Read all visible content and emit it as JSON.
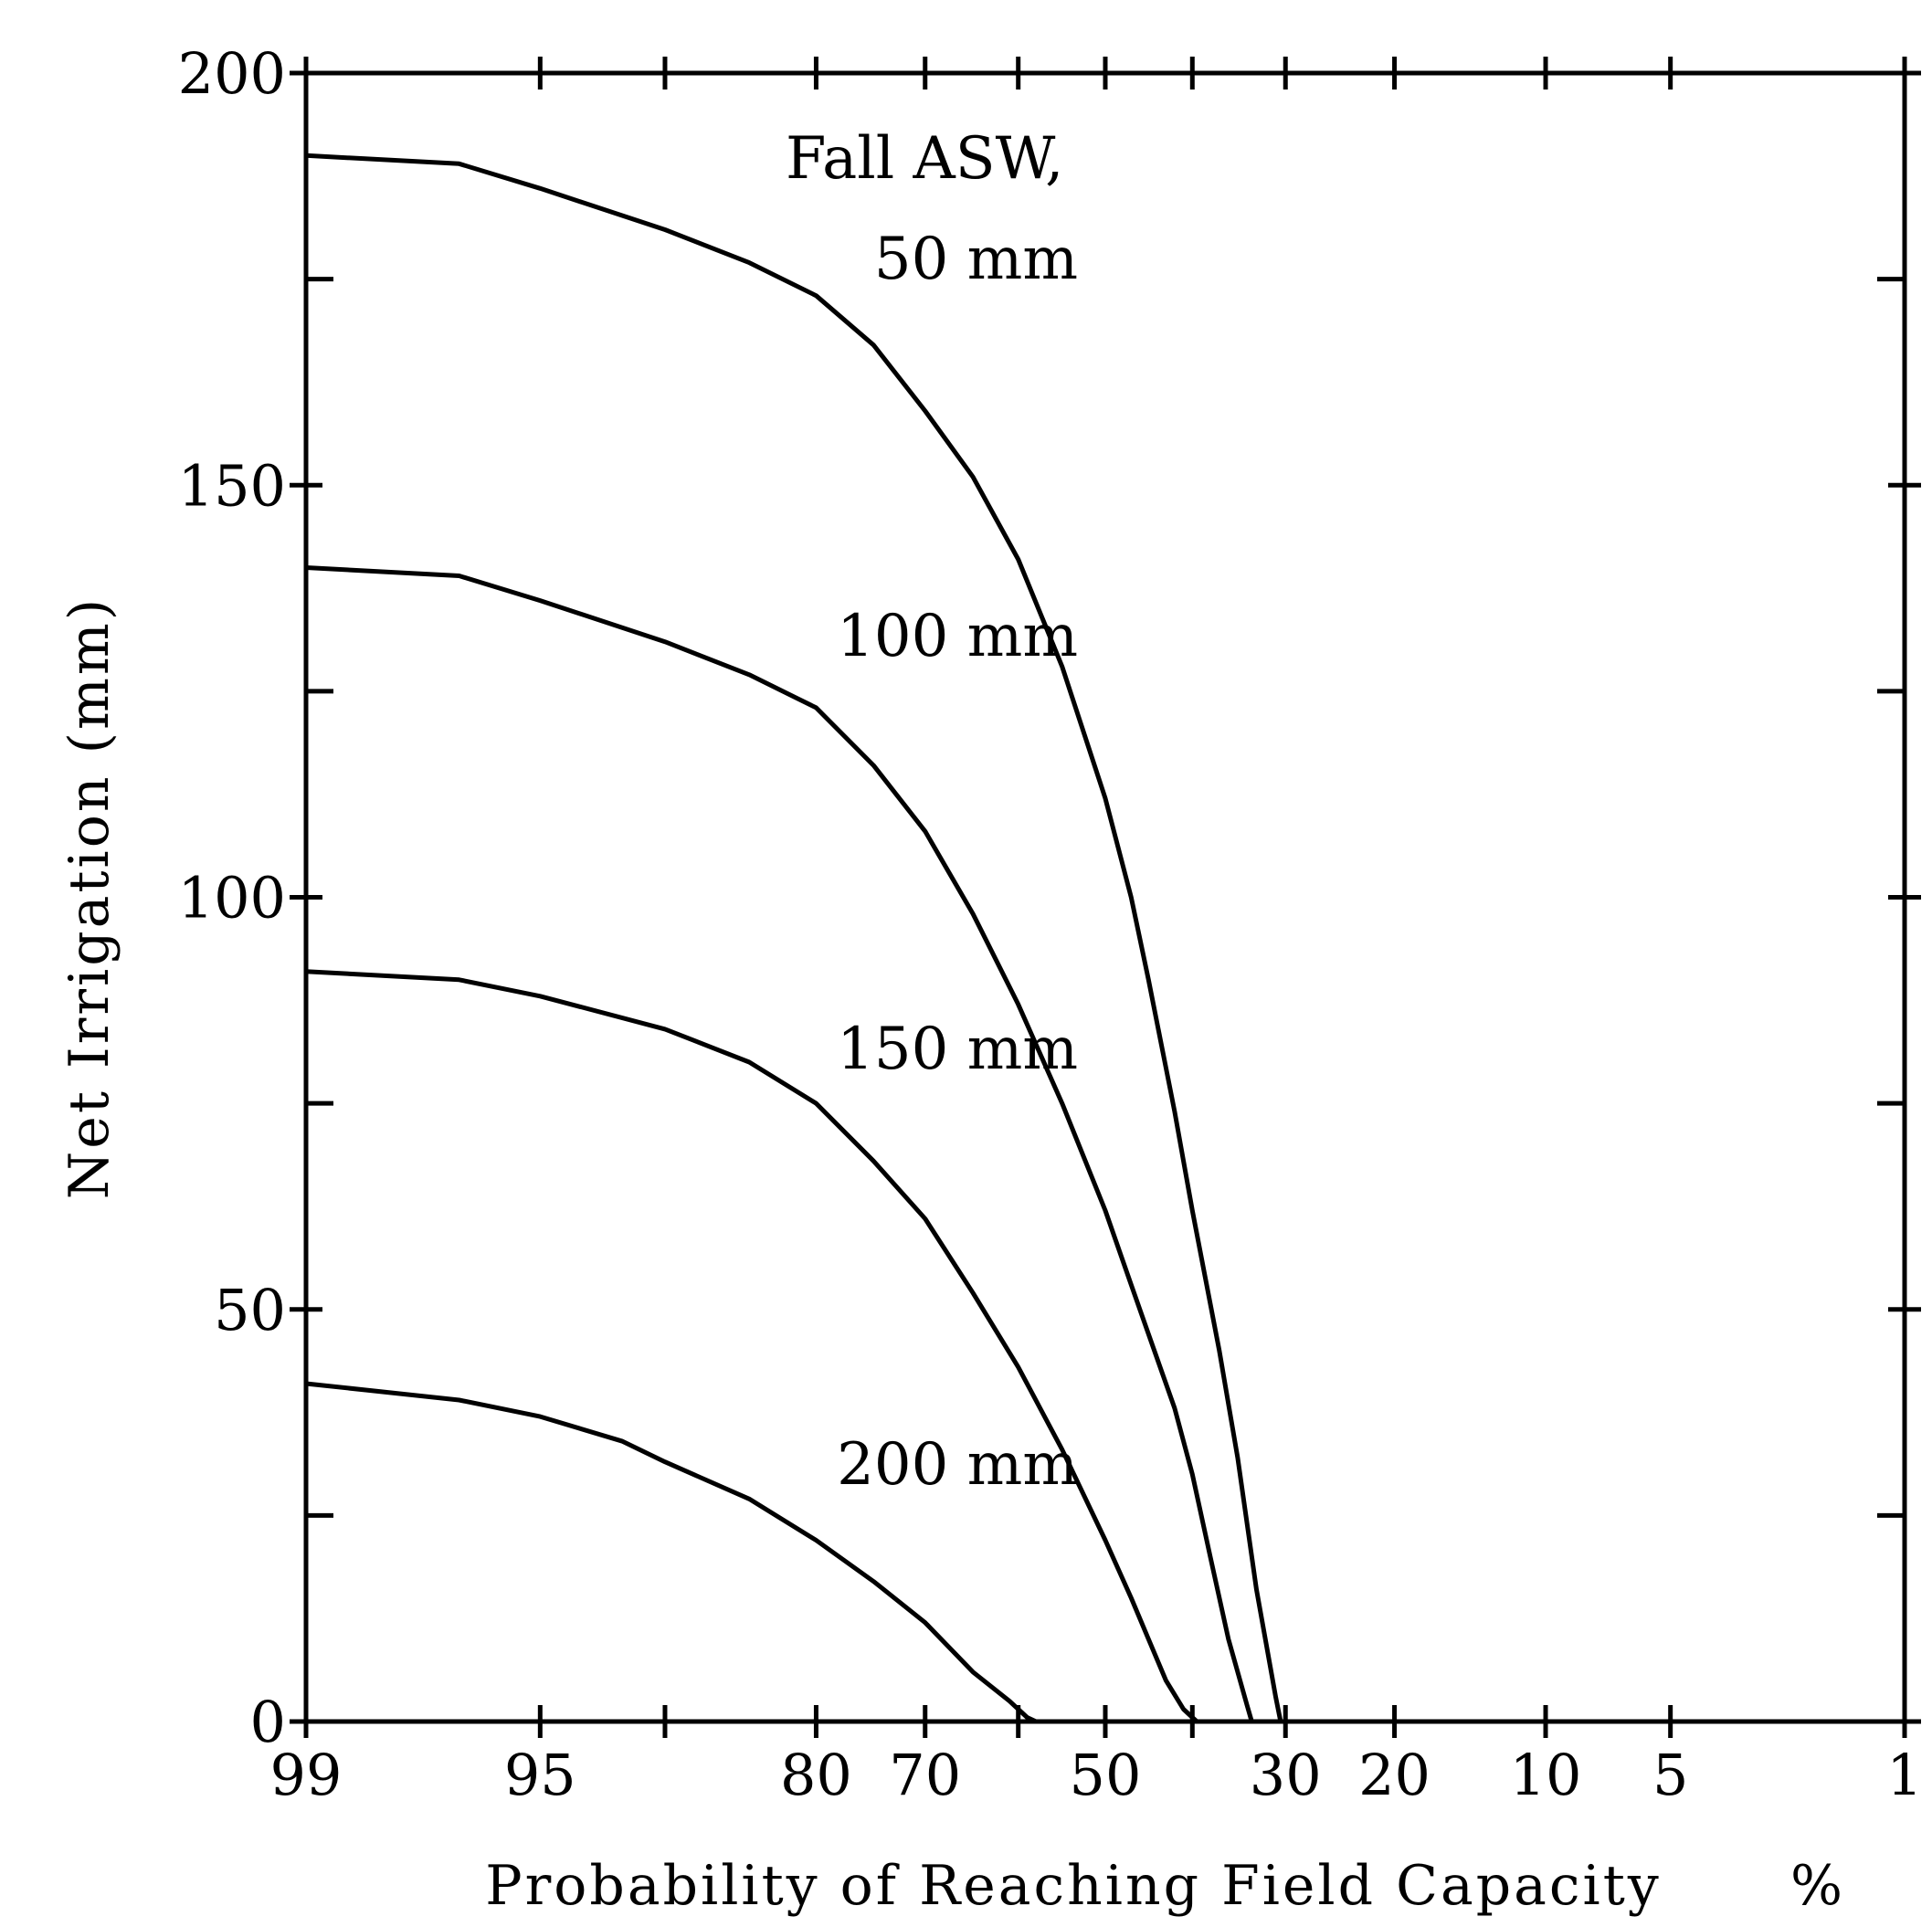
{
  "chart_data": {
    "type": "line",
    "title": "",
    "ylabel": "Net Irrigation (mm)",
    "xlabel": "Probability of Reaching Field Capacity",
    "xunit": "%",
    "x_scale": "normal-probability",
    "x_direction": "descending",
    "ylim": [
      0,
      200
    ],
    "y_ticks": [
      0,
      50,
      100,
      150,
      200
    ],
    "y_minor_ticks": [
      25,
      75,
      125,
      175
    ],
    "x_tick_labels": [
      "99",
      "95",
      "80",
      "70",
      "50",
      "30",
      "20",
      "10",
      "5",
      "1"
    ],
    "x_tick_values": [
      99,
      95,
      80,
      70,
      50,
      30,
      20,
      10,
      5,
      1
    ],
    "x_minor_ticks": [
      90,
      60,
      40
    ],
    "grid": false,
    "legend": "none",
    "annotations": [
      {
        "text": "Fall ASW,"
      }
    ],
    "series": [
      {
        "name": "50 mm",
        "x": [
          99,
          97,
          95,
          90,
          85,
          80,
          75,
          70,
          65,
          60,
          55,
          50,
          47,
          45,
          42,
          40,
          37,
          35,
          33,
          31,
          30.5
        ],
        "y": [
          190,
          189,
          186,
          181,
          177,
          173,
          167,
          159,
          151,
          141,
          128,
          112,
          100,
          90,
          74,
          62,
          45,
          32,
          16,
          3,
          0
        ]
      },
      {
        "name": "100 mm",
        "x": [
          99,
          97,
          95,
          90,
          85,
          80,
          75,
          70,
          65,
          60,
          55,
          50,
          47,
          45,
          42,
          40,
          38,
          36,
          34,
          33.5
        ],
        "y": [
          140,
          139,
          136,
          131,
          127,
          123,
          116,
          108,
          98,
          87,
          75,
          62,
          53,
          47,
          38,
          30,
          20,
          10,
          2,
          0
        ]
      },
      {
        "name": "150 mm",
        "x": [
          99,
          97,
          95,
          90,
          85,
          80,
          75,
          70,
          65,
          60,
          55,
          50,
          47,
          45,
          43,
          41,
          40,
          39.5
        ],
        "y": [
          91,
          90,
          88,
          84,
          80,
          75,
          68,
          61,
          52,
          43,
          33,
          22,
          15,
          10,
          5,
          1.5,
          0.5,
          0
        ]
      },
      {
        "name": "200 mm",
        "x": [
          99,
          97,
          95,
          92,
          90,
          85,
          80,
          75,
          70,
          65,
          61,
          59,
          58
        ],
        "y": [
          41,
          39,
          37,
          34,
          31.5,
          27,
          22,
          17,
          12,
          6,
          2.5,
          0.5,
          0
        ]
      }
    ]
  }
}
